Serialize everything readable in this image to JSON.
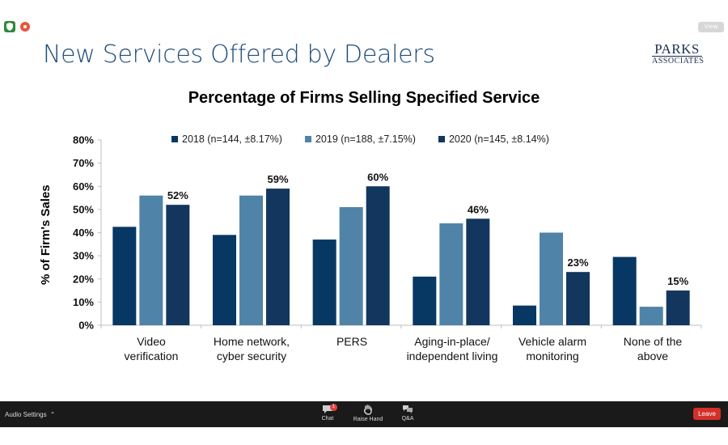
{
  "slide": {
    "title": "New Services Offered by Dealers",
    "logo_line1": "PARKS",
    "logo_line2": "ASSOCIATES"
  },
  "window": {
    "view_label": "View"
  },
  "chart_data": {
    "type": "bar",
    "title": "Percentage of Firms Selling Specified Service",
    "ylabel": "% of Firm's Sales",
    "xlabel": "",
    "ylim": [
      0,
      80
    ],
    "yticks": [
      "0%",
      "10%",
      "20%",
      "30%",
      "40%",
      "50%",
      "60%",
      "70%",
      "80%"
    ],
    "categories": [
      "Video verification",
      "Home network, cyber security",
      "PERS",
      "Aging-in-place/ independent living",
      "Vehicle alarm monitoring",
      "None of the above"
    ],
    "category_lines": [
      [
        "Video",
        "verification"
      ],
      [
        "Home network,",
        "cyber security"
      ],
      [
        "PERS",
        ""
      ],
      [
        "Aging-in-place/",
        "independent living"
      ],
      [
        "Vehicle alarm",
        "monitoring"
      ],
      [
        "None of the",
        "above"
      ]
    ],
    "series": [
      {
        "name": "2018 (n=144, ±8.17%)",
        "color": "#073763",
        "values": [
          42.5,
          39,
          37,
          21,
          8.5,
          29.5
        ]
      },
      {
        "name": "2019 (n=188, ±7.15%)",
        "color": "#5083a8",
        "values": [
          56,
          56,
          51,
          44,
          40,
          8
        ]
      },
      {
        "name": "2020 (n=145, ±8.14%)",
        "color": "#12365e",
        "values": [
          52,
          59,
          60,
          46,
          23,
          15
        ]
      }
    ],
    "data_labels": [
      "52%",
      "59%",
      "60%",
      "46%",
      "23%",
      "15%"
    ],
    "legend_position": "top",
    "grid": false
  },
  "toolbar": {
    "audio_label": "Audio Settings",
    "chat_label": "Chat",
    "chat_badge": "1",
    "raise_hand_label": "Raise Hand",
    "qa_label": "Q&A",
    "leave_label": "Leave"
  }
}
